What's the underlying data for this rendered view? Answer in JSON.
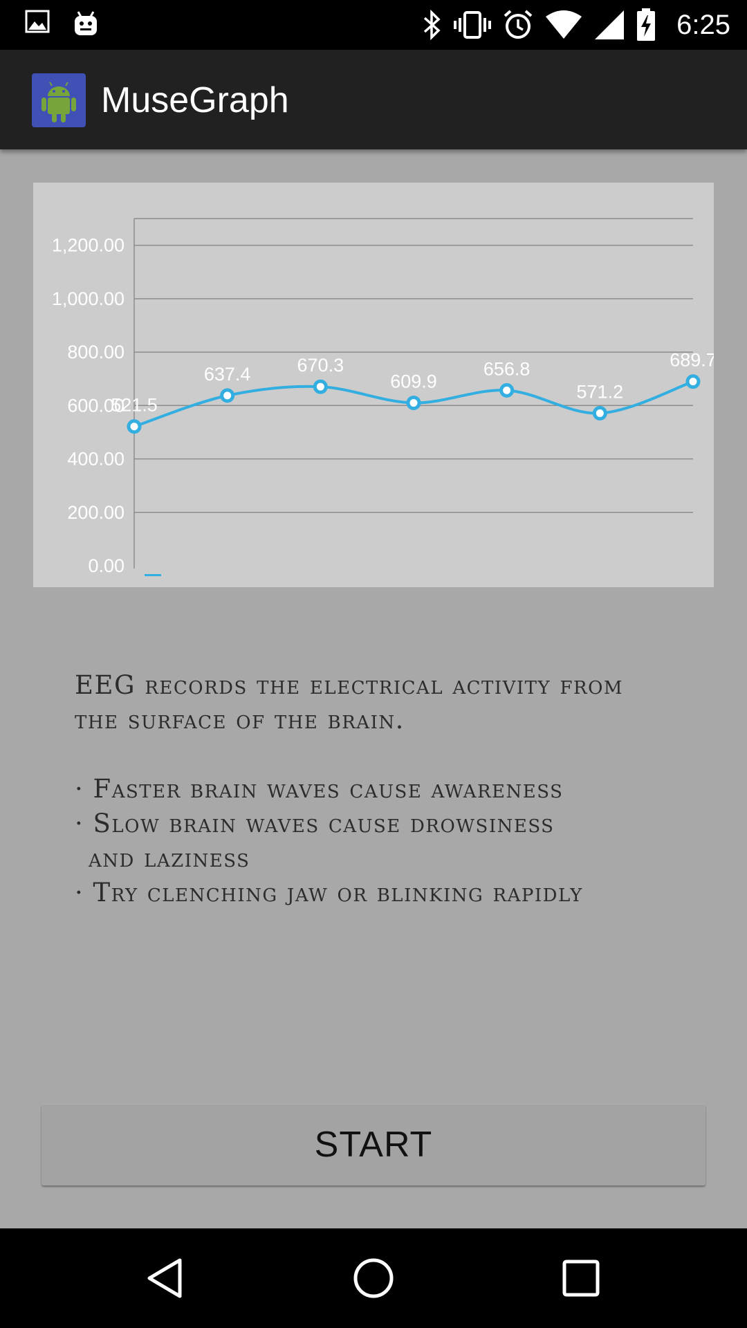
{
  "status_bar": {
    "time": "6:25",
    "left_icons": [
      "image-icon",
      "android-notification-icon"
    ],
    "right_icons": [
      "bluetooth-icon",
      "vibrate-icon",
      "alarm-icon",
      "wifi-icon",
      "cell-signal-icon",
      "battery-charging-icon"
    ]
  },
  "app_bar": {
    "title": "MuseGraph",
    "icon": "android-robot-icon",
    "icon_bg": "#3f51b5",
    "icon_fg": "#78a53a"
  },
  "chart_data": {
    "type": "line",
    "x": [
      0,
      1,
      2,
      3,
      4,
      5,
      6
    ],
    "values": [
      521.5,
      637.4,
      670.3,
      609.9,
      656.8,
      571.2,
      689.7
    ],
    "data_labels": [
      "521.5",
      "637.4",
      "670.3",
      "609.9",
      "656.8",
      "571.2",
      "689.7"
    ],
    "ylim": [
      0,
      1300
    ],
    "yticks": [
      0,
      200,
      400,
      600,
      800,
      1000,
      1200
    ],
    "ytick_labels": [
      "0.00",
      "200.00",
      "400.00",
      "600.00",
      "800.00",
      "1,000.00",
      "1,200.00"
    ],
    "grid": true,
    "line_color": "#33aee0",
    "background": "#cccccc",
    "smooth": true
  },
  "description": {
    "intro_line1": "EEG records the electrical activity from",
    "intro_line2": "the surface of the brain.",
    "bullet1": "· Faster brain waves cause awareness",
    "bullet2_line1": "· Slow brain waves cause drowsiness",
    "bullet2_line2": "and laziness",
    "bullet3": "· Try clenching jaw or blinking rapidly"
  },
  "start_button": {
    "label": "START"
  },
  "nav_bar": {
    "icons": [
      "back-icon",
      "home-icon",
      "recent-apps-icon"
    ]
  }
}
